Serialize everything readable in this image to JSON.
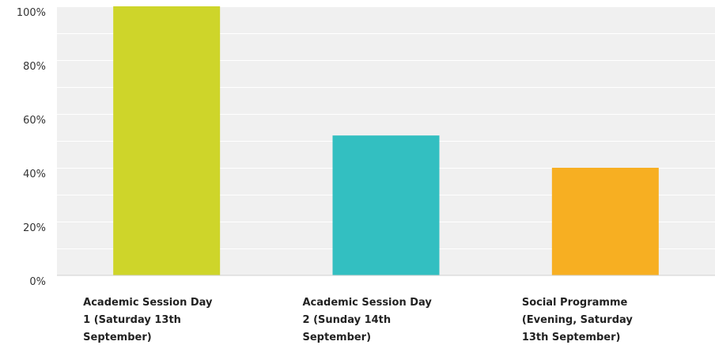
{
  "chart_data": {
    "type": "bar",
    "categories": [
      [
        "Academic Session Day",
        "1 (Saturday 13th",
        "September)"
      ],
      [
        "Academic Session Day",
        "2 (Sunday 14th",
        "September)"
      ],
      [
        "Social Programme",
        "(Evening, Saturday",
        "13th September)"
      ]
    ],
    "values": [
      100,
      52,
      40
    ],
    "colors": [
      "#ced52a",
      "#33bfc1",
      "#f7af22"
    ],
    "yticks": [
      "0%",
      "20%",
      "40%",
      "60%",
      "80%",
      "100%"
    ],
    "ylim": [
      0,
      100
    ],
    "grid": true,
    "plot_background": "#f0f0f0",
    "grid_color": "#ffffff"
  }
}
